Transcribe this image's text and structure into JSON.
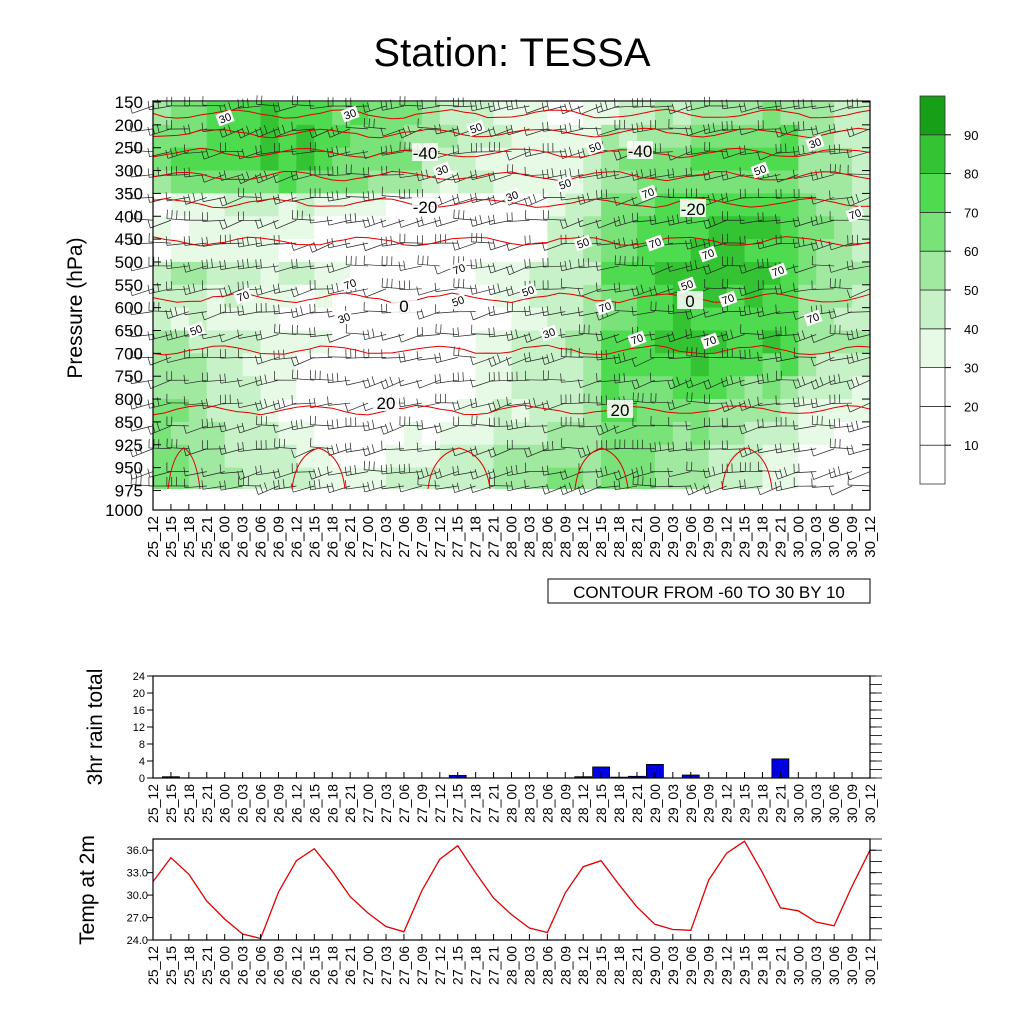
{
  "title": "Station: TESSA",
  "colors": {
    "rh_fills": [
      "#ffffff",
      "#ffffff",
      "#ffffff",
      "#e6fae6",
      "#c7f2c7",
      "#a1e9a1",
      "#79e279",
      "#4fdb4f",
      "#33c333",
      "#189f18"
    ],
    "temp_contour": "#e00000",
    "rain_bar": "#0000e0",
    "temp_line": "#e00000"
  },
  "chart_data": [
    {
      "type": "heatmap",
      "name": "time-pressure cross-section",
      "ylabel": "Pressure (hPa)",
      "pressure_levels": [
        150,
        200,
        250,
        300,
        350,
        400,
        450,
        500,
        550,
        600,
        650,
        700,
        750,
        800,
        850,
        925,
        950,
        975,
        1000
      ],
      "time_labels": [
        "25_12",
        "25_15",
        "25_18",
        "25_21",
        "26_00",
        "26_03",
        "26_06",
        "26_09",
        "26_12",
        "26_15",
        "26_18",
        "26_21",
        "27_00",
        "27_03",
        "27_06",
        "27_09",
        "27_12",
        "27_15",
        "27_18",
        "27_21",
        "28_00",
        "28_03",
        "28_06",
        "28_09",
        "28_12",
        "28_15",
        "28_18",
        "28_21",
        "29_00",
        "29_03",
        "29_06",
        "29_09",
        "29_12",
        "29_15",
        "29_18",
        "29_21",
        "30_00",
        "30_03",
        "30_06",
        "30_09",
        "30_12"
      ],
      "rh_levels": [
        10,
        20,
        30,
        40,
        50,
        60,
        70,
        80,
        90
      ],
      "temperature_contour_labels": [
        "-40",
        "-40",
        "-20",
        "-20",
        "0",
        "0",
        "20",
        "20"
      ],
      "rh_contour_labels": [
        "30",
        "30",
        "50",
        "50",
        "30",
        "30",
        "50",
        "70",
        "30",
        "50",
        "70",
        "50",
        "70",
        "70",
        "70",
        "70",
        "70",
        "50",
        "50",
        "70",
        "30",
        "50",
        "70",
        "70",
        "70",
        "50",
        "30",
        "70",
        "70"
      ],
      "annotation": "CONTOUR FROM -60 TO 30 BY 10"
    },
    {
      "type": "bar",
      "name": "rain",
      "ylabel": "3hr rain total",
      "ylim": [
        0,
        24
      ],
      "yticks": [
        "0",
        "4",
        "8",
        "12",
        "16",
        "20",
        "24"
      ],
      "categories": [
        "25_12",
        "25_15",
        "25_18",
        "25_21",
        "26_00",
        "26_03",
        "26_06",
        "26_09",
        "26_12",
        "26_15",
        "26_18",
        "26_21",
        "27_00",
        "27_03",
        "27_06",
        "27_09",
        "27_12",
        "27_15",
        "27_18",
        "27_21",
        "28_00",
        "28_03",
        "28_06",
        "28_09",
        "28_12",
        "28_15",
        "28_18",
        "28_21",
        "29_00",
        "29_03",
        "29_06",
        "29_09",
        "29_12",
        "29_15",
        "29_18",
        "29_21",
        "30_00",
        "30_03",
        "30_06",
        "30_09",
        "30_12"
      ],
      "values": [
        0,
        0.3,
        0,
        0,
        0,
        0,
        0,
        0,
        0,
        0,
        0,
        0,
        0,
        0,
        0,
        0,
        0,
        0.6,
        0,
        0,
        0,
        0,
        0,
        0,
        0.3,
        2.6,
        0.2,
        0.4,
        3.2,
        0,
        0.7,
        0,
        0,
        0,
        0,
        4.5,
        0,
        0,
        0,
        0,
        0
      ]
    },
    {
      "type": "line",
      "name": "temperature",
      "ylabel": "Temp at 2m",
      "ylim": [
        24,
        37.5
      ],
      "yticks": [
        "24.0",
        "27.0",
        "30.0",
        "33.0",
        "36.0"
      ],
      "categories": [
        "25_12",
        "25_15",
        "25_18",
        "25_21",
        "26_00",
        "26_03",
        "26_06",
        "26_09",
        "26_12",
        "26_15",
        "26_18",
        "26_21",
        "27_00",
        "27_03",
        "27_06",
        "27_09",
        "27_12",
        "27_15",
        "27_18",
        "27_21",
        "28_00",
        "28_03",
        "28_06",
        "28_09",
        "28_12",
        "28_15",
        "28_18",
        "28_21",
        "29_00",
        "29_03",
        "29_06",
        "29_09",
        "29_12",
        "29_15",
        "29_18",
        "29_21",
        "30_00",
        "30_03",
        "30_06",
        "30_09",
        "30_12"
      ],
      "values": [
        31.8,
        35.0,
        32.8,
        29.2,
        26.8,
        24.8,
        24.2,
        30.4,
        34.6,
        36.2,
        33.2,
        29.8,
        27.6,
        25.8,
        25.1,
        30.6,
        34.8,
        36.6,
        33.0,
        29.6,
        27.4,
        25.6,
        25.0,
        30.3,
        33.8,
        34.6,
        31.4,
        28.4,
        26.1,
        25.4,
        25.3,
        32.0,
        35.6,
        37.2,
        33.0,
        28.3,
        27.9,
        26.4,
        25.9,
        31.2,
        36.0
      ]
    }
  ]
}
